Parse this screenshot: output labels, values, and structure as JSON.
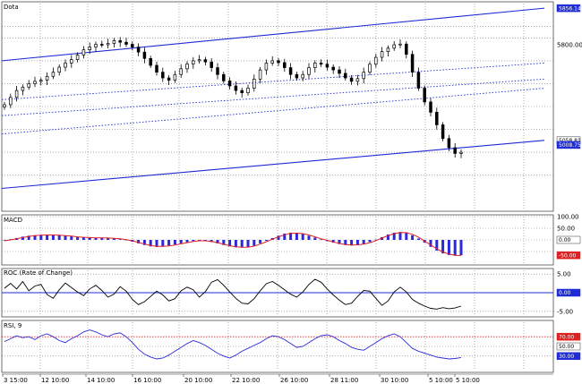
{
  "colors": {
    "channel": "#1f2bd6",
    "grid": "#7a7a7a",
    "candle": "#000000",
    "macd_hist": "#2a2ad8",
    "macd_signal": "#e02020",
    "roc_line": "#000000",
    "rsi_line": "#2a2ad8",
    "rsi_overbought": "#e02020",
    "tag_red": "#e02020",
    "tag_blue": "#1f2bd6",
    "tag_white": "#ffffff"
  },
  "chart_data": [
    {
      "type": "candlestick",
      "title": "Dota",
      "y_ticks": [
        "5856.14",
        "5800.00",
        "5058.81",
        "5008.75"
      ],
      "x_ticks": [
        "3 15:00",
        "12 10:00",
        "14 10:00",
        "16 10:00",
        "20 10:00",
        "22 10:00",
        "26 10:00",
        "28 11:00",
        "30 10:00",
        "5 10:00",
        "5 10:00"
      ],
      "close": [
        5508,
        5540,
        5570,
        5585,
        5600,
        5610,
        5615,
        5632,
        5650,
        5672,
        5690,
        5705,
        5725,
        5748,
        5760,
        5772,
        5770,
        5776,
        5788,
        5781,
        5772,
        5760,
        5738,
        5710,
        5680,
        5650,
        5625,
        5615,
        5640,
        5665,
        5686,
        5700,
        5705,
        5695,
        5670,
        5640,
        5612,
        5590,
        5570,
        5560,
        5580,
        5620,
        5660,
        5690,
        5700,
        5692,
        5670,
        5640,
        5625,
        5640,
        5670,
        5690,
        5685,
        5672,
        5660,
        5645,
        5625,
        5610,
        5622,
        5650,
        5685,
        5715,
        5740,
        5755,
        5770,
        5773,
        5728,
        5650,
        5580,
        5520,
        5475,
        5420,
        5360,
        5320,
        5295,
        5300
      ],
      "channel_upper": [
        5700,
        5930
      ],
      "channel_lower": [
        5142,
        5352
      ],
      "dotted_lines": [
        [
          5380,
          5580
        ],
        [
          5460,
          5620
        ],
        [
          5530,
          5690
        ]
      ],
      "grid": true
    },
    {
      "type": "bar",
      "title": "MACD",
      "y_ticks": [
        "100.00",
        "50.00",
        "0.00",
        "-50.00"
      ],
      "ylim": [
        -100,
        100
      ],
      "values": [
        -2,
        3,
        8,
        14,
        18,
        20,
        22,
        23,
        22,
        20,
        18,
        15,
        12,
        10,
        9,
        9,
        9,
        8,
        6,
        3,
        -2,
        -8,
        -15,
        -22,
        -28,
        -30,
        -28,
        -24,
        -20,
        -15,
        -10,
        -5,
        -3,
        -4,
        -9,
        -15,
        -22,
        -28,
        -32,
        -33,
        -31,
        -25,
        -15,
        -4,
        8,
        18,
        27,
        31,
        30,
        26,
        18,
        10,
        2,
        -5,
        -12,
        -18,
        -22,
        -24,
        -22,
        -17,
        -9,
        1,
        12,
        23,
        31,
        34,
        30,
        20,
        6,
        -12,
        -30,
        -46,
        -58,
        -65,
        -68,
        -66
      ],
      "signal": [
        -4,
        0,
        5,
        10,
        15,
        18,
        20,
        21,
        21,
        20,
        18,
        16,
        13,
        11,
        10,
        9,
        9,
        8,
        7,
        5,
        1,
        -4,
        -11,
        -18,
        -24,
        -28,
        -28,
        -26,
        -22,
        -17,
        -12,
        -7,
        -4,
        -4,
        -7,
        -12,
        -19,
        -25,
        -30,
        -32,
        -31,
        -27,
        -18,
        -8,
        3,
        13,
        22,
        28,
        29,
        27,
        21,
        13,
        5,
        -2,
        -9,
        -15,
        -20,
        -22,
        -21,
        -18,
        -12,
        -3,
        8,
        18,
        27,
        32,
        31,
        24,
        12,
        -5,
        -22,
        -38,
        -52,
        -61,
        -66,
        -67
      ],
      "grid": true
    },
    {
      "type": "line",
      "title": "ROC (Rate of Change)",
      "y_ticks": [
        "5.00",
        "0.00",
        "-5.00"
      ],
      "ylim": [
        -6,
        6
      ],
      "values": [
        1.2,
        2.5,
        1.0,
        3.0,
        0.5,
        1.8,
        2.2,
        -0.5,
        -1.5,
        0.8,
        2.6,
        1.4,
        0.2,
        -0.8,
        1.0,
        2.0,
        0.6,
        -1.2,
        -0.4,
        1.6,
        0.4,
        -1.8,
        -3.2,
        -2.4,
        -1.0,
        0.4,
        -0.6,
        -2.2,
        -1.6,
        0.5,
        1.5,
        0.8,
        -1.2,
        0.3,
        2.8,
        3.5,
        2.0,
        0.2,
        -1.5,
        -2.8,
        -3.0,
        -1.6,
        0.5,
        2.4,
        3.0,
        2.0,
        0.8,
        -0.4,
        -1.2,
        0.2,
        2.2,
        3.6,
        2.8,
        1.0,
        -0.6,
        -2.0,
        -3.2,
        -2.8,
        -1.0,
        0.6,
        0.4,
        -1.5,
        -3.4,
        -2.2,
        0.2,
        1.5,
        0.2,
        -1.8,
        -2.8,
        -3.6,
        -4.2,
        -4.4,
        -4.0,
        -4.3,
        -4.1,
        -3.6
      ],
      "reference": 0,
      "grid": true
    },
    {
      "type": "line",
      "title": "RSI, 9",
      "y_ticks": [
        "70.00",
        "50.00",
        "30.00"
      ],
      "ylim": [
        0,
        100
      ],
      "values": [
        60,
        66,
        72,
        68,
        70,
        64,
        72,
        76,
        70,
        62,
        58,
        66,
        72,
        80,
        84,
        80,
        74,
        70,
        76,
        78,
        70,
        58,
        44,
        34,
        28,
        24,
        26,
        32,
        40,
        48,
        56,
        62,
        58,
        52,
        44,
        36,
        30,
        26,
        32,
        40,
        46,
        52,
        58,
        66,
        72,
        70,
        64,
        56,
        48,
        50,
        58,
        66,
        72,
        74,
        70,
        62,
        56,
        48,
        44,
        42,
        50,
        58,
        66,
        72,
        76,
        70,
        58,
        46,
        40,
        36,
        32,
        28,
        26,
        24,
        25,
        27
      ],
      "overbought": 70,
      "grid": true
    }
  ]
}
